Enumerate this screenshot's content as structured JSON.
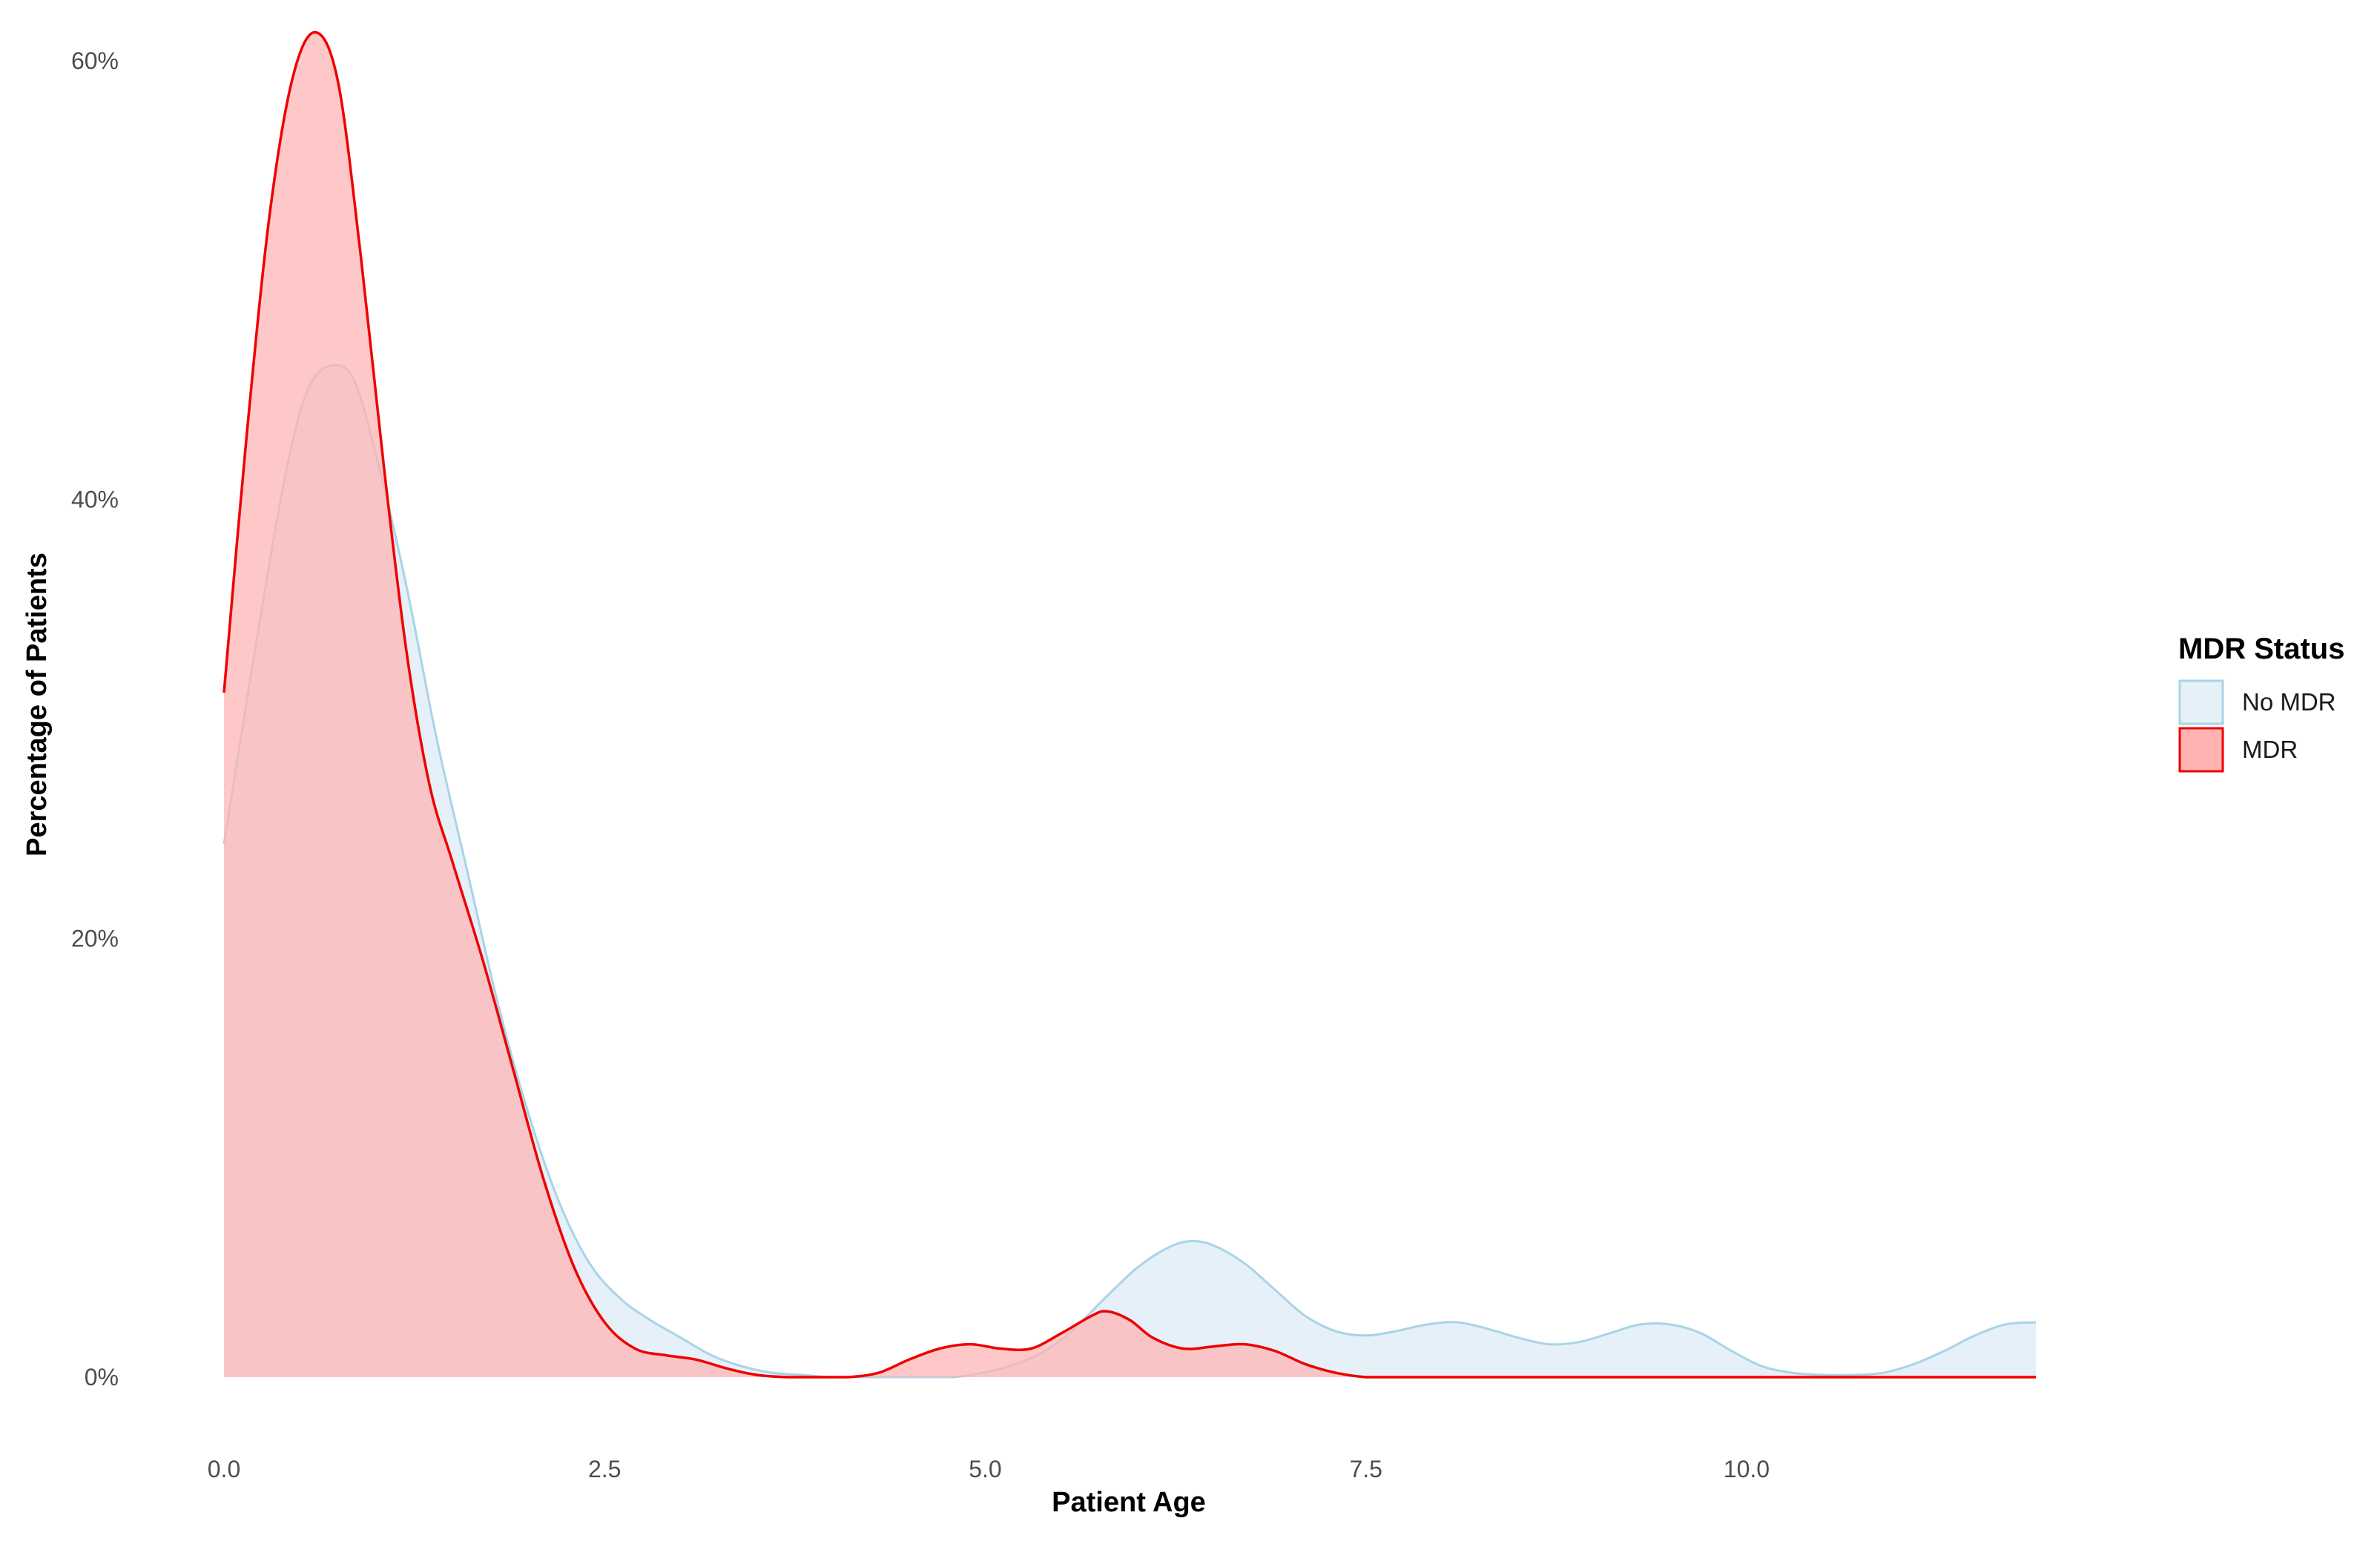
{
  "chart_data": {
    "type": "area",
    "xlabel": "Patient Age",
    "ylabel": "Percentage of Patients",
    "xlim": [
      0,
      11.9
    ],
    "ylim": [
      0,
      0.6
    ],
    "x_ticks": [
      0,
      2.5,
      5,
      7.5,
      10
    ],
    "x_tick_labels": [
      "0.0",
      "2.5",
      "5.0",
      "7.5",
      "10.0"
    ],
    "y_ticks": [
      0,
      0.2,
      0.4,
      0.6
    ],
    "y_tick_labels": [
      "0%",
      "20%",
      "40%",
      "60%"
    ],
    "grid": false,
    "legend": {
      "title": "MDR Status",
      "placement": "right"
    },
    "series": [
      {
        "name": "No MDR",
        "fill": "#e6f0f8",
        "stroke": "#a8d4e6",
        "x": [
          0,
          0.2,
          0.4,
          0.55,
          0.7,
          0.85,
          1.0,
          1.2,
          1.4,
          1.6,
          1.8,
          2.0,
          2.2,
          2.4,
          2.6,
          2.8,
          3.0,
          3.2,
          3.4,
          3.6,
          3.8,
          4.0,
          4.4,
          4.8,
          5.2,
          5.5,
          5.8,
          6.0,
          6.2,
          6.35,
          6.5,
          6.7,
          6.9,
          7.1,
          7.3,
          7.5,
          7.7,
          7.9,
          8.1,
          8.3,
          8.5,
          8.7,
          8.9,
          9.1,
          9.3,
          9.5,
          9.7,
          9.9,
          10.1,
          10.3,
          10.5,
          10.7,
          10.9,
          11.1,
          11.3,
          11.5,
          11.7,
          11.9
        ],
        "y": [
          0.243,
          0.33,
          0.41,
          0.45,
          0.461,
          0.455,
          0.42,
          0.36,
          0.29,
          0.23,
          0.17,
          0.12,
          0.08,
          0.052,
          0.036,
          0.026,
          0.018,
          0.01,
          0.005,
          0.002,
          0.001,
          0.0,
          0.0,
          0.0,
          0.006,
          0.017,
          0.037,
          0.05,
          0.059,
          0.062,
          0.06,
          0.052,
          0.04,
          0.028,
          0.021,
          0.019,
          0.021,
          0.024,
          0.025,
          0.022,
          0.018,
          0.015,
          0.016,
          0.02,
          0.024,
          0.024,
          0.02,
          0.012,
          0.005,
          0.002,
          0.001,
          0.001,
          0.002,
          0.006,
          0.012,
          0.019,
          0.024,
          0.025
        ]
      },
      {
        "name": "MDR",
        "fill": "#ffb3b3",
        "stroke": "#ee0000",
        "x": [
          0,
          0.15,
          0.3,
          0.45,
          0.6,
          0.75,
          0.9,
          1.05,
          1.2,
          1.35,
          1.5,
          1.7,
          1.9,
          2.1,
          2.3,
          2.5,
          2.7,
          2.9,
          3.1,
          3.3,
          3.5,
          3.7,
          3.9,
          4.1,
          4.3,
          4.5,
          4.7,
          4.9,
          5.1,
          5.3,
          5.5,
          5.7,
          5.8,
          5.95,
          6.1,
          6.3,
          6.5,
          6.7,
          6.9,
          7.1,
          7.3,
          7.5,
          7.7,
          8.0,
          9.0,
          10.0,
          11.0,
          11.9
        ],
        "y": [
          0.312,
          0.43,
          0.53,
          0.592,
          0.613,
          0.59,
          0.51,
          0.415,
          0.33,
          0.27,
          0.235,
          0.19,
          0.14,
          0.09,
          0.05,
          0.025,
          0.013,
          0.01,
          0.008,
          0.004,
          0.001,
          0.0,
          0.0,
          0.0,
          0.002,
          0.008,
          0.013,
          0.015,
          0.013,
          0.013,
          0.02,
          0.028,
          0.03,
          0.026,
          0.018,
          0.013,
          0.014,
          0.015,
          0.012,
          0.006,
          0.002,
          0.0,
          0.0,
          0.0,
          0.0,
          0.0,
          0.0,
          0.0
        ]
      }
    ]
  }
}
